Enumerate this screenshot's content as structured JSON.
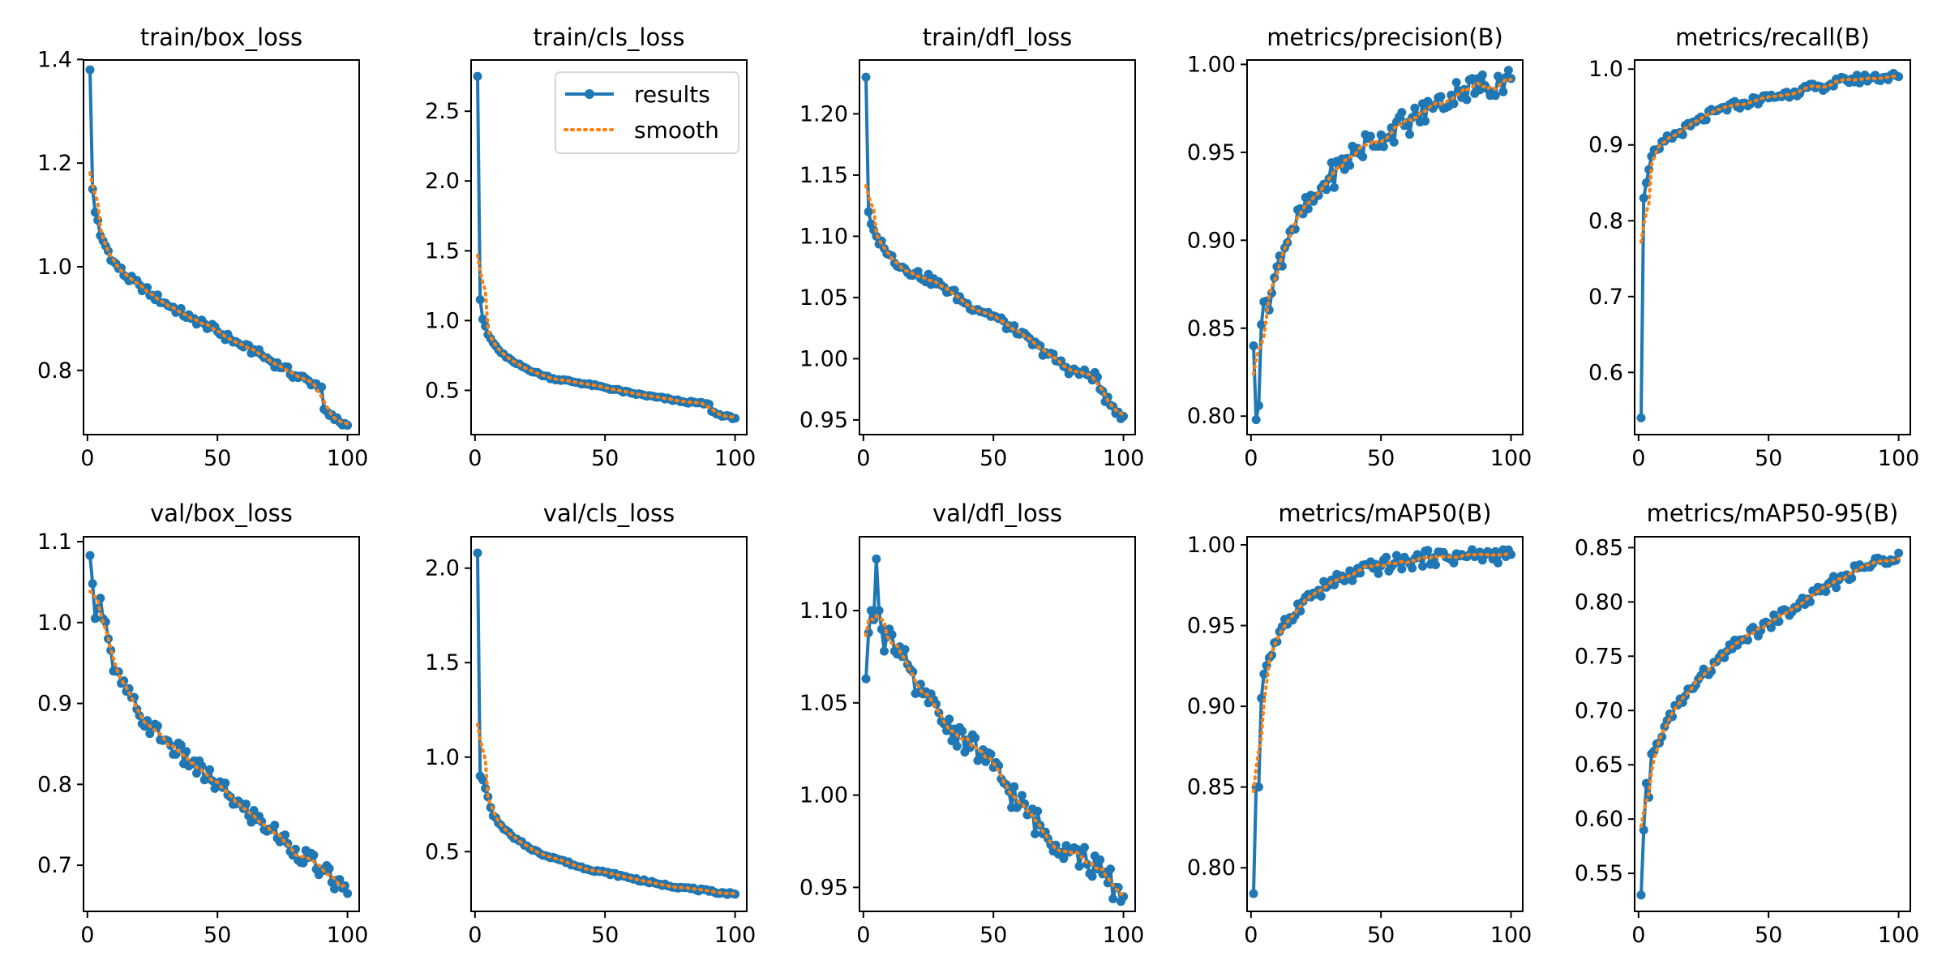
{
  "legend": {
    "results_label": "results",
    "smooth_label": "smooth"
  },
  "colors": {
    "results": "#1f77b4",
    "smooth": "#ff7f0e",
    "axes": "#000000",
    "background": "#ffffff"
  },
  "chart_data": [
    {
      "type": "line",
      "title": "train/box_loss",
      "xlim": [
        -1.5,
        104.5
      ],
      "ylim": [
        0.676,
        1.399
      ],
      "xticks": [
        0,
        50,
        100
      ],
      "yticks": [
        0.8,
        1.0,
        1.2,
        1.4
      ],
      "ytick_labels": [
        "0.8",
        "1.0",
        "1.2",
        "1.4"
      ],
      "anchors": [
        [
          1,
          1.38
        ],
        [
          2,
          1.15
        ],
        [
          3,
          1.105
        ],
        [
          4,
          1.09
        ],
        [
          5,
          1.06
        ],
        [
          7,
          1.04
        ],
        [
          10,
          1.01
        ],
        [
          15,
          0.98
        ],
        [
          20,
          0.965
        ],
        [
          25,
          0.945
        ],
        [
          30,
          0.93
        ],
        [
          35,
          0.915
        ],
        [
          40,
          0.9
        ],
        [
          45,
          0.89
        ],
        [
          50,
          0.875
        ],
        [
          55,
          0.86
        ],
        [
          60,
          0.845
        ],
        [
          65,
          0.835
        ],
        [
          70,
          0.82
        ],
        [
          75,
          0.805
        ],
        [
          80,
          0.79
        ],
        [
          85,
          0.78
        ],
        [
          90,
          0.768
        ],
        [
          91,
          0.725
        ],
        [
          93,
          0.713
        ],
        [
          95,
          0.705
        ],
        [
          100,
          0.694
        ]
      ],
      "noise": 0.008
    },
    {
      "type": "line",
      "title": "train/cls_loss",
      "xlim": [
        -1.5,
        104.5
      ],
      "ylim": [
        0.183,
        2.867
      ],
      "xticks": [
        0,
        50,
        100
      ],
      "yticks": [
        0.5,
        1.0,
        1.5,
        2.0,
        2.5
      ],
      "ytick_labels": [
        "0.5",
        "1.0",
        "1.5",
        "2.0",
        "2.5"
      ],
      "legend": true,
      "anchors": [
        [
          1,
          2.75
        ],
        [
          2,
          1.15
        ],
        [
          3,
          1.01
        ],
        [
          4,
          0.96
        ],
        [
          5,
          0.9
        ],
        [
          7,
          0.84
        ],
        [
          10,
          0.77
        ],
        [
          15,
          0.7
        ],
        [
          20,
          0.655
        ],
        [
          25,
          0.615
        ],
        [
          30,
          0.585
        ],
        [
          40,
          0.555
        ],
        [
          50,
          0.52
        ],
        [
          60,
          0.48
        ],
        [
          70,
          0.45
        ],
        [
          80,
          0.42
        ],
        [
          90,
          0.4
        ],
        [
          91,
          0.35
        ],
        [
          93,
          0.33
        ],
        [
          100,
          0.3
        ]
      ],
      "noise": 0.008
    },
    {
      "type": "line",
      "title": "train/dfl_loss",
      "xlim": [
        -1.5,
        104.5
      ],
      "ylim": [
        0.938,
        1.244
      ],
      "xticks": [
        0,
        50,
        100
      ],
      "yticks": [
        0.95,
        1.0,
        1.05,
        1.1,
        1.15,
        1.2
      ],
      "ytick_labels": [
        "0.95",
        "1.00",
        "1.05",
        "1.10",
        "1.15",
        "1.20"
      ],
      "anchors": [
        [
          1,
          1.23
        ],
        [
          2,
          1.12
        ],
        [
          3,
          1.11
        ],
        [
          5,
          1.1
        ],
        [
          8,
          1.09
        ],
        [
          10,
          1.085
        ],
        [
          15,
          1.075
        ],
        [
          20,
          1.07
        ],
        [
          30,
          1.06
        ],
        [
          40,
          1.045
        ],
        [
          50,
          1.035
        ],
        [
          60,
          1.02
        ],
        [
          70,
          1.005
        ],
        [
          80,
          0.99
        ],
        [
          90,
          0.985
        ],
        [
          91,
          0.975
        ],
        [
          95,
          0.962
        ],
        [
          100,
          0.953
        ]
      ],
      "noise": 0.004
    },
    {
      "type": "line",
      "title": "metrics/precision(B)",
      "xlim": [
        -1.5,
        104.5
      ],
      "ylim": [
        0.7895,
        1.0025
      ],
      "xticks": [
        0,
        50,
        100
      ],
      "yticks": [
        0.8,
        0.85,
        0.9,
        0.95,
        1.0
      ],
      "ytick_labels": [
        "0.80",
        "0.85",
        "0.90",
        "0.95",
        "1.00"
      ],
      "anchors": [
        [
          1,
          0.84
        ],
        [
          2,
          0.798
        ],
        [
          3,
          0.806
        ],
        [
          4,
          0.852
        ],
        [
          5,
          0.865
        ],
        [
          8,
          0.87
        ],
        [
          10,
          0.885
        ],
        [
          15,
          0.905
        ],
        [
          20,
          0.915
        ],
        [
          25,
          0.925
        ],
        [
          30,
          0.935
        ],
        [
          40,
          0.95
        ],
        [
          50,
          0.96
        ],
        [
          60,
          0.967
        ],
        [
          70,
          0.975
        ],
        [
          80,
          0.985
        ],
        [
          90,
          0.988
        ],
        [
          100,
          0.992
        ]
      ],
      "noise": 0.008
    },
    {
      "type": "line",
      "title": "metrics/recall(B)",
      "xlim": [
        -1.5,
        104.5
      ],
      "ylim": [
        0.518,
        1.012
      ],
      "xticks": [
        0,
        50,
        100
      ],
      "yticks": [
        0.6,
        0.7,
        0.8,
        0.9,
        1.0
      ],
      "ytick_labels": [
        "0.6",
        "0.7",
        "0.8",
        "0.9",
        "1.0"
      ],
      "anchors": [
        [
          1,
          0.54
        ],
        [
          2,
          0.83
        ],
        [
          3,
          0.85
        ],
        [
          5,
          0.885
        ],
        [
          8,
          0.895
        ],
        [
          10,
          0.905
        ],
        [
          15,
          0.915
        ],
        [
          20,
          0.925
        ],
        [
          30,
          0.945
        ],
        [
          40,
          0.955
        ],
        [
          50,
          0.962
        ],
        [
          60,
          0.97
        ],
        [
          70,
          0.977
        ],
        [
          80,
          0.985
        ],
        [
          90,
          0.989
        ],
        [
          100,
          0.99
        ]
      ],
      "noise": 0.006
    },
    {
      "type": "line",
      "title": "val/box_loss",
      "xlim": [
        -1.5,
        104.5
      ],
      "ylim": [
        0.643,
        1.106
      ],
      "xticks": [
        0,
        50,
        100
      ],
      "yticks": [
        0.7,
        0.8,
        0.9,
        1.0,
        1.1
      ],
      "ytick_labels": [
        "0.7",
        "0.8",
        "0.9",
        "1.0",
        "1.1"
      ],
      "anchors": [
        [
          1,
          1.083
        ],
        [
          2,
          1.048
        ],
        [
          3,
          1.005
        ],
        [
          5,
          1.03
        ],
        [
          8,
          0.98
        ],
        [
          10,
          0.94
        ],
        [
          15,
          0.915
        ],
        [
          20,
          0.885
        ],
        [
          25,
          0.87
        ],
        [
          30,
          0.855
        ],
        [
          40,
          0.825
        ],
        [
          50,
          0.8
        ],
        [
          60,
          0.77
        ],
        [
          70,
          0.745
        ],
        [
          80,
          0.72
        ],
        [
          90,
          0.695
        ],
        [
          100,
          0.665
        ]
      ],
      "noise": 0.012
    },
    {
      "type": "line",
      "title": "val/cls_loss",
      "xlim": [
        -1.5,
        104.5
      ],
      "ylim": [
        0.184,
        2.166
      ],
      "xticks": [
        0,
        50,
        100
      ],
      "yticks": [
        0.5,
        1.0,
        1.5,
        2.0
      ],
      "ytick_labels": [
        "0.5",
        "1.0",
        "1.5",
        "2.0"
      ],
      "anchors": [
        [
          1,
          2.08
        ],
        [
          2,
          0.9
        ],
        [
          3,
          0.88
        ],
        [
          5,
          0.79
        ],
        [
          7,
          0.69
        ],
        [
          10,
          0.64
        ],
        [
          15,
          0.57
        ],
        [
          20,
          0.53
        ],
        [
          25,
          0.49
        ],
        [
          30,
          0.47
        ],
        [
          40,
          0.42
        ],
        [
          50,
          0.39
        ],
        [
          60,
          0.36
        ],
        [
          70,
          0.33
        ],
        [
          80,
          0.31
        ],
        [
          90,
          0.29
        ],
        [
          100,
          0.275
        ]
      ],
      "noise": 0.007
    },
    {
      "type": "line",
      "title": "val/dfl_loss",
      "xlim": [
        -1.5,
        104.5
      ],
      "ylim": [
        0.937,
        1.14
      ],
      "xticks": [
        0,
        50,
        100
      ],
      "yticks": [
        0.95,
        1.0,
        1.05,
        1.1
      ],
      "ytick_labels": [
        "0.95",
        "1.00",
        "1.05",
        "1.10"
      ],
      "anchors": [
        [
          1,
          1.063
        ],
        [
          2,
          1.088
        ],
        [
          3,
          1.1
        ],
        [
          4,
          1.095
        ],
        [
          5,
          1.128
        ],
        [
          6,
          1.1
        ],
        [
          8,
          1.078
        ],
        [
          10,
          1.09
        ],
        [
          15,
          1.075
        ],
        [
          20,
          1.055
        ],
        [
          25,
          1.05
        ],
        [
          30,
          1.04
        ],
        [
          40,
          1.03
        ],
        [
          50,
          1.015
        ],
        [
          60,
          0.995
        ],
        [
          70,
          0.98
        ],
        [
          80,
          0.97
        ],
        [
          90,
          0.96
        ],
        [
          100,
          0.945
        ]
      ],
      "noise": 0.008
    },
    {
      "type": "line",
      "title": "metrics/mAP50(B)",
      "xlim": [
        -1.5,
        104.5
      ],
      "ylim": [
        0.773,
        1.005
      ],
      "xticks": [
        0,
        50,
        100
      ],
      "yticks": [
        0.8,
        0.85,
        0.9,
        0.95,
        1.0
      ],
      "ytick_labels": [
        "0.80",
        "0.85",
        "0.90",
        "0.95",
        "1.00"
      ],
      "anchors": [
        [
          1,
          0.784
        ],
        [
          2,
          0.85
        ],
        [
          3,
          0.85
        ],
        [
          4,
          0.905
        ],
        [
          5,
          0.92
        ],
        [
          7,
          0.93
        ],
        [
          10,
          0.94
        ],
        [
          15,
          0.955
        ],
        [
          20,
          0.965
        ],
        [
          30,
          0.975
        ],
        [
          40,
          0.982
        ],
        [
          50,
          0.987
        ],
        [
          60,
          0.99
        ],
        [
          70,
          0.992
        ],
        [
          80,
          0.993
        ],
        [
          100,
          0.994
        ]
      ],
      "noise": 0.005
    },
    {
      "type": "line",
      "title": "metrics/mAP50-95(B)",
      "xlim": [
        -1.5,
        104.5
      ],
      "ylim": [
        0.515,
        0.86
      ],
      "xticks": [
        0,
        50,
        100
      ],
      "yticks": [
        0.55,
        0.6,
        0.65,
        0.7,
        0.75,
        0.8,
        0.85
      ],
      "ytick_labels": [
        "0.55",
        "0.60",
        "0.65",
        "0.70",
        "0.75",
        "0.80",
        "0.85"
      ],
      "anchors": [
        [
          1,
          0.53
        ],
        [
          2,
          0.59
        ],
        [
          3,
          0.633
        ],
        [
          4,
          0.62
        ],
        [
          5,
          0.66
        ],
        [
          8,
          0.67
        ],
        [
          10,
          0.685
        ],
        [
          15,
          0.705
        ],
        [
          20,
          0.72
        ],
        [
          30,
          0.745
        ],
        [
          40,
          0.765
        ],
        [
          50,
          0.78
        ],
        [
          60,
          0.795
        ],
        [
          70,
          0.81
        ],
        [
          80,
          0.825
        ],
        [
          90,
          0.835
        ],
        [
          100,
          0.845
        ]
      ],
      "noise": 0.006
    }
  ]
}
